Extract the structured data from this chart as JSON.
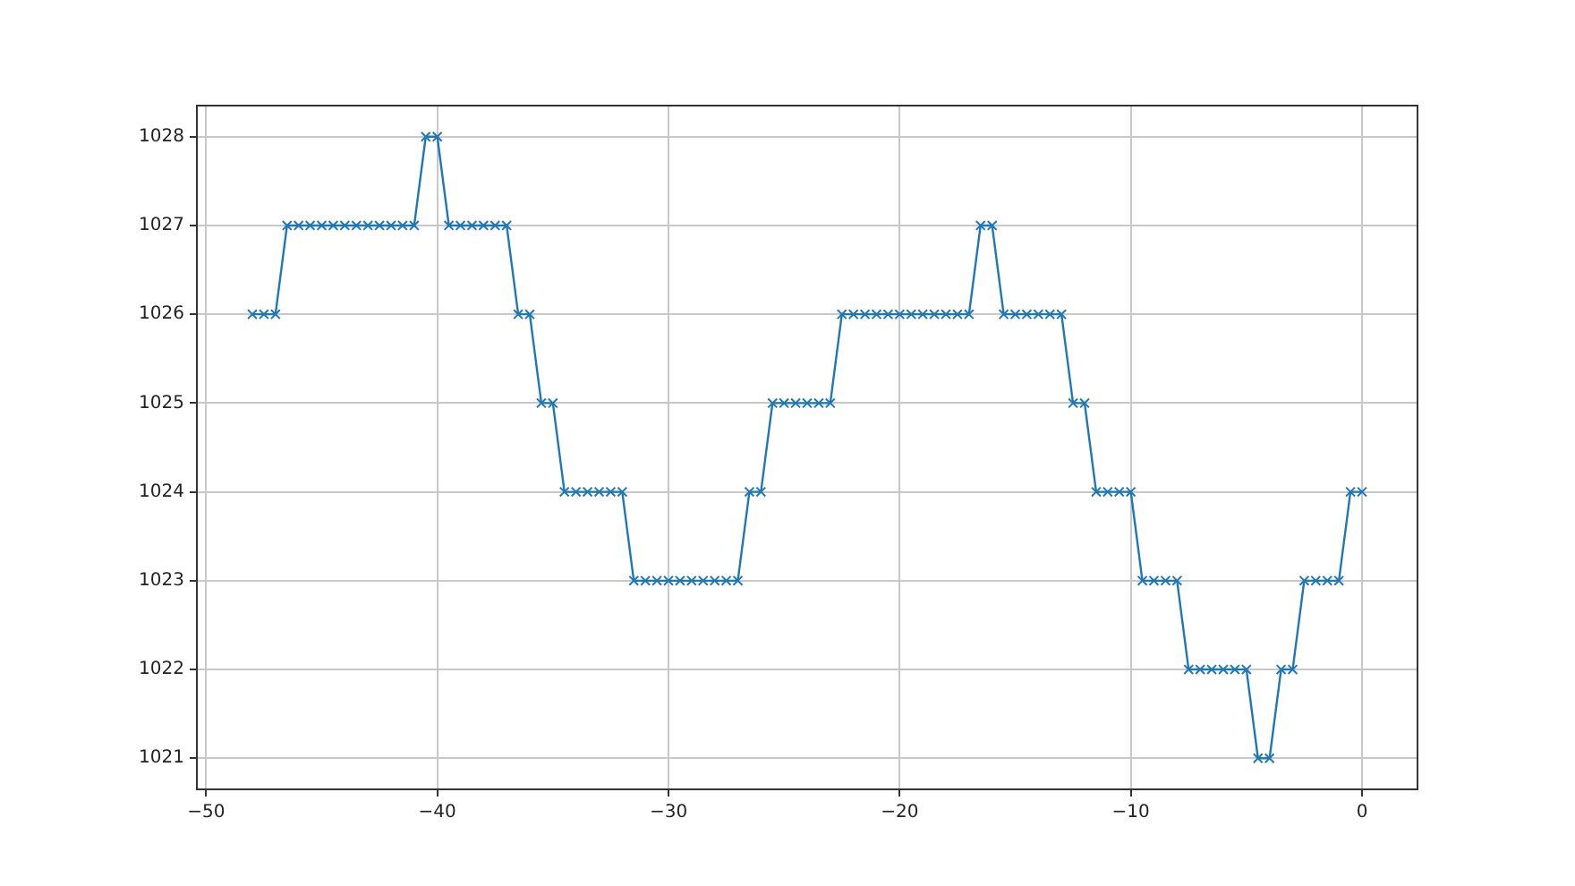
{
  "chart_data": {
    "type": "line",
    "x": [
      -48,
      -47.5,
      -47,
      -46.5,
      -46,
      -45.5,
      -45,
      -44.5,
      -44,
      -43.5,
      -43,
      -42.5,
      -42,
      -41.5,
      -41,
      -40.5,
      -40,
      -39.5,
      -39,
      -38.5,
      -38,
      -37.5,
      -37,
      -36.5,
      -36,
      -35.5,
      -35,
      -34.5,
      -34,
      -33.5,
      -33,
      -32.5,
      -32,
      -31.5,
      -31,
      -30.5,
      -30,
      -29.5,
      -29,
      -28.5,
      -28,
      -27.5,
      -27,
      -26.5,
      -26,
      -25.5,
      -25,
      -24.5,
      -24,
      -23.5,
      -23,
      -22.5,
      -22,
      -21.5,
      -21,
      -20.5,
      -20,
      -19.5,
      -19,
      -18.5,
      -18,
      -17.5,
      -17,
      -16.5,
      -16,
      -15.5,
      -15,
      -14.5,
      -14,
      -13.5,
      -13,
      -12.5,
      -12,
      -11.5,
      -11,
      -10.5,
      -10,
      -9.5,
      -9,
      -8.5,
      -8,
      -7.5,
      -7,
      -6.5,
      -6,
      -5.5,
      -5,
      -4.5,
      -4,
      -3.5,
      -3,
      -2.5,
      -2,
      -1.5,
      -1,
      -0.5,
      0
    ],
    "series": [
      {
        "color": "#1f77b4",
        "values": [
          1026,
          1026,
          1026,
          1027,
          1027,
          1027,
          1027,
          1027,
          1027,
          1027,
          1027,
          1027,
          1027,
          1027,
          1027,
          1028,
          1028,
          1027,
          1027,
          1027,
          1027,
          1027,
          1027,
          1026,
          1026,
          1025,
          1025,
          1024,
          1024,
          1024,
          1024,
          1024,
          1024,
          1023,
          1023,
          1023,
          1023,
          1023,
          1023,
          1023,
          1023,
          1023,
          1023,
          1024,
          1024,
          1025,
          1025,
          1025,
          1025,
          1025,
          1025,
          1026,
          1026,
          1026,
          1026,
          1026,
          1026,
          1026,
          1026,
          1026,
          1026,
          1026,
          1026,
          1027,
          1027,
          1026,
          1026,
          1026,
          1026,
          1026,
          1026,
          1025,
          1025,
          1024,
          1024,
          1024,
          1024,
          1023,
          1023,
          1023,
          1023,
          1022,
          1022,
          1022,
          1022,
          1022,
          1022,
          1021,
          1021,
          1022,
          1022,
          1023,
          1023,
          1023,
          1023,
          1024,
          1024
        ]
      }
    ],
    "xlim": [
      -50.4,
      2.4
    ],
    "xticks": [
      -50,
      -40,
      -30,
      -20,
      -10,
      0
    ],
    "ylim": [
      1020.65,
      1028.35
    ],
    "yticks": [
      1021,
      1022,
      1023,
      1024,
      1025,
      1026,
      1027,
      1028
    ],
    "grid": true,
    "marker": "cross",
    "line_style": "solid"
  }
}
